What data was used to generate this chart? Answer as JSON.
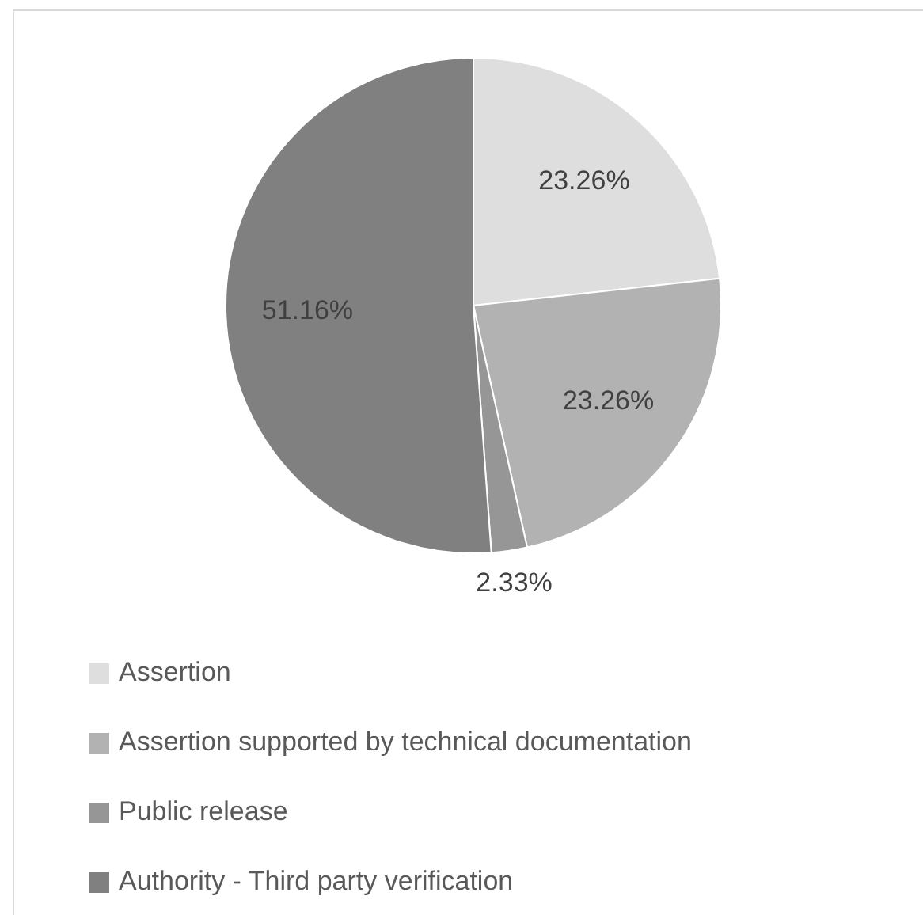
{
  "chart_data": {
    "type": "pie",
    "categories": [
      "Assertion",
      "Assertion supported by technical documentation",
      "Public release",
      "Authority - Third party verification"
    ],
    "values": [
      23.26,
      23.26,
      2.33,
      51.16
    ],
    "value_labels": [
      "23.26%",
      "23.26%",
      "2.33%",
      "51.16%"
    ],
    "colors": [
      "#dedede",
      "#b2b2b2",
      "#969696",
      "#808080"
    ],
    "legend": "bottom"
  }
}
